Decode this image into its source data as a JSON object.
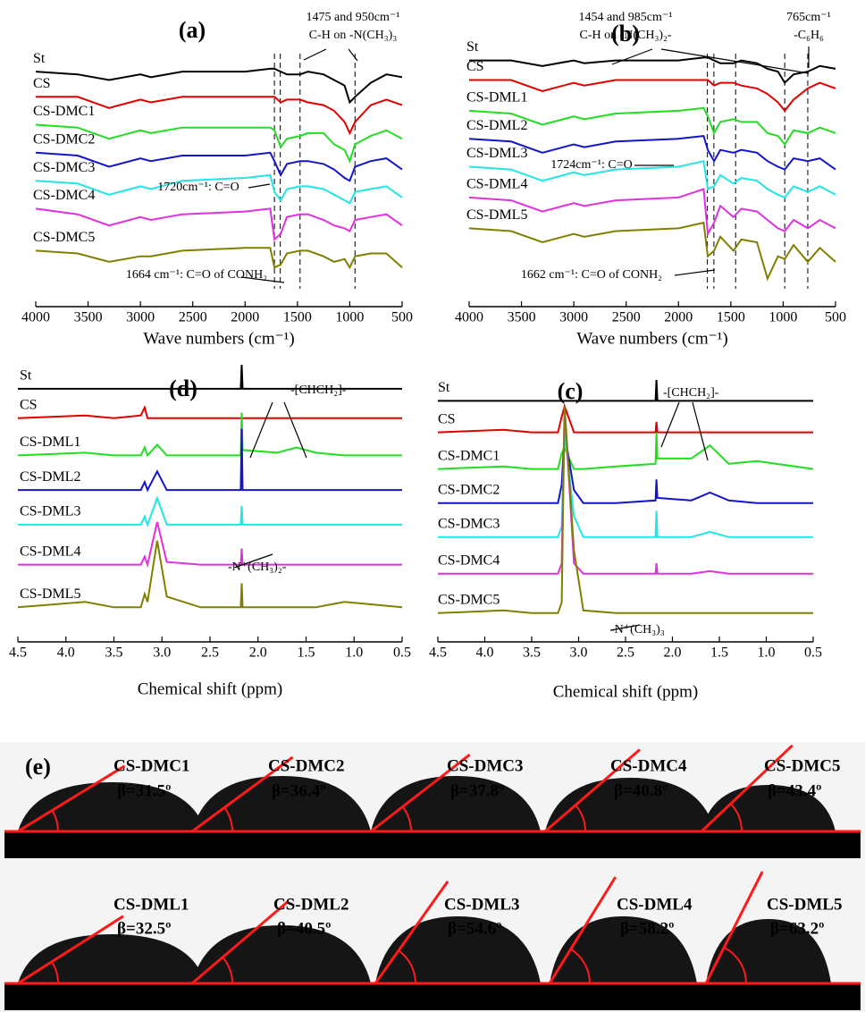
{
  "chart_data": [
    {
      "type": "line",
      "label": "(a)",
      "xlabel": "Wave numbers (cm⁻¹)",
      "xlim": [
        4000,
        500
      ],
      "xticks": [
        4000,
        3500,
        3000,
        2500,
        2000,
        1500,
        1000,
        500
      ],
      "ylim": [
        0,
        100
      ],
      "x": [
        4000,
        3600,
        3300,
        3000,
        2900,
        2600,
        2000,
        1760,
        1720,
        1660,
        1600,
        1475,
        1400,
        1250,
        1150,
        1050,
        1000,
        950,
        800,
        650,
        500
      ],
      "reference_lines": [
        1720,
        1664,
        1475,
        950
      ],
      "annotations": [
        "1475 and 950cm⁻¹",
        "C-H on -N(CH₃)₃",
        "1720cm⁻¹: C=O",
        "1664 cm⁻¹: C=O of CONH₂"
      ],
      "series": [
        {
          "name": "St",
          "color": "#000000",
          "values": [
            84,
            83,
            81,
            83,
            82,
            84,
            84,
            85,
            85,
            84,
            83,
            83,
            84,
            83,
            81,
            79,
            73,
            75,
            80,
            83,
            82
          ]
        },
        {
          "name": "CS",
          "color": "#e00000",
          "values": [
            75,
            75,
            71,
            74,
            73,
            75,
            75,
            75,
            75,
            73,
            74,
            74,
            73,
            72,
            70,
            66,
            62,
            66,
            72,
            74,
            72
          ]
        },
        {
          "name": "CS-DMC1",
          "color": "#22dd22",
          "values": [
            65,
            64,
            60,
            63,
            62,
            64,
            64,
            64,
            63,
            57,
            60,
            61,
            62,
            62,
            58,
            56,
            52,
            58,
            61,
            63,
            60
          ]
        },
        {
          "name": "CS-DMC2",
          "color": "#1515c8",
          "values": [
            55,
            54,
            50,
            53,
            52,
            54,
            54,
            55,
            52,
            47,
            51,
            52,
            52,
            51,
            49,
            46,
            45,
            50,
            52,
            53,
            49
          ]
        },
        {
          "name": "CS-DMC3",
          "color": "#22e5e5",
          "values": [
            45,
            44,
            40,
            43,
            42,
            45,
            46,
            47,
            41,
            38,
            42,
            43,
            43,
            42,
            40,
            38,
            37,
            41,
            42,
            43,
            39
          ]
        },
        {
          "name": "CS-DMC4",
          "color": "#e030e0",
          "values": [
            35,
            33,
            29,
            32,
            31,
            33,
            34,
            35,
            24,
            26,
            32,
            33,
            33,
            31,
            29,
            28,
            27,
            31,
            32,
            33,
            29
          ]
        },
        {
          "name": "CS-DMC5",
          "color": "#808000",
          "values": [
            20,
            19,
            16,
            18,
            18,
            20,
            21,
            21,
            14,
            15,
            19,
            20,
            20,
            18,
            16,
            17,
            14,
            18,
            19,
            19,
            14
          ]
        }
      ]
    },
    {
      "type": "line",
      "label": "(b)",
      "xlabel": "Wave numbers (cm⁻¹)",
      "xlim": [
        4000,
        500
      ],
      "xticks": [
        4000,
        3500,
        3000,
        2500,
        2000,
        1500,
        1000,
        500
      ],
      "ylim": [
        0,
        100
      ],
      "x": [
        4000,
        3600,
        3300,
        3000,
        2900,
        2600,
        2000,
        1760,
        1720,
        1660,
        1600,
        1475,
        1400,
        1250,
        1150,
        1050,
        985,
        900,
        765,
        650,
        500
      ],
      "reference_lines": [
        1724,
        1662,
        1454,
        985,
        765
      ],
      "annotations": [
        "1454 and 985cm⁻¹",
        "C-H on -N(CH₃)₂-",
        "765cm⁻¹",
        "-C₆H₆",
        "1724cm⁻¹: C=O",
        "1662 cm⁻¹: C=O of CONH₂"
      ],
      "series": [
        {
          "name": "St",
          "color": "#000000",
          "values": [
            88,
            88,
            86,
            88,
            87,
            88,
            88,
            89,
            89,
            88,
            87,
            87,
            88,
            87,
            85,
            84,
            80,
            83,
            84,
            86,
            85
          ]
        },
        {
          "name": "CS",
          "color": "#e00000",
          "values": [
            81,
            81,
            77,
            80,
            79,
            81,
            81,
            81,
            81,
            79,
            80,
            80,
            79,
            78,
            76,
            73,
            70,
            74,
            78,
            80,
            78
          ]
        },
        {
          "name": "CS-DML1",
          "color": "#22dd22",
          "values": [
            70,
            69,
            65,
            68,
            67,
            69,
            70,
            71,
            68,
            62,
            66,
            67,
            66,
            66,
            62,
            61,
            58,
            63,
            62,
            64,
            62
          ]
        },
        {
          "name": "CS-DML2",
          "color": "#1515c8",
          "values": [
            60,
            59,
            55,
            58,
            57,
            59,
            60,
            61,
            56,
            52,
            56,
            55,
            56,
            55,
            52,
            50,
            49,
            53,
            52,
            53,
            49
          ]
        },
        {
          "name": "CS-DML3",
          "color": "#22e5e5",
          "values": [
            50,
            49,
            45,
            48,
            47,
            49,
            50,
            52,
            42,
            43,
            47,
            44,
            46,
            45,
            42,
            40,
            39,
            43,
            41,
            43,
            40
          ]
        },
        {
          "name": "CS-DML4",
          "color": "#e030e0",
          "values": [
            39,
            38,
            34,
            37,
            36,
            38,
            39,
            42,
            26,
            30,
            36,
            32,
            35,
            34,
            31,
            28,
            27,
            31,
            28,
            31,
            28
          ]
        },
        {
          "name": "CS-DML5",
          "color": "#808000",
          "values": [
            28,
            27,
            23,
            26,
            25,
            27,
            28,
            30,
            18,
            20,
            25,
            20,
            24,
            23,
            10,
            18,
            17,
            22,
            16,
            21,
            16
          ]
        }
      ]
    },
    {
      "type": "line",
      "label": "(d)",
      "xlabel": "Chemical shift (ppm)",
      "xlim": [
        4.5,
        0.5
      ],
      "xticks": [
        4.5,
        {
          "value": 4,
          "label": "4.0"
        },
        3.5,
        {
          "value": 3,
          "label": "3.0"
        },
        2.5,
        {
          "value": 2,
          "label": "2.0"
        },
        1.5,
        {
          "value": 1,
          "label": "1.0"
        },
        0.5
      ],
      "ylim": [
        0,
        100
      ],
      "x": [
        4.5,
        3.8,
        3.5,
        3.22,
        3.18,
        3.15,
        3.05,
        2.95,
        2.6,
        2.18,
        2.17,
        2.16,
        1.8,
        1.6,
        1.4,
        1.1,
        0.5
      ],
      "annotations": [
        "-[CHCH₂]-",
        "-N⁺(CH₃)₂-"
      ],
      "series": [
        {
          "name": "St",
          "color": "#000000",
          "values": [
            95,
            95,
            95,
            95,
            95,
            95,
            95,
            95,
            95,
            95,
            104,
            95,
            95,
            95,
            95,
            95,
            95
          ]
        },
        {
          "name": "CS",
          "color": "#e00000",
          "values": [
            84,
            85,
            84,
            85,
            88,
            84,
            84,
            84,
            84,
            84,
            84,
            84,
            84,
            84,
            84,
            84,
            84
          ]
        },
        {
          "name": "CS-DML1",
          "color": "#22dd22",
          "values": [
            70,
            71,
            70,
            70,
            73,
            70,
            74,
            70,
            70,
            70,
            86,
            72,
            71,
            73,
            71,
            70,
            70
          ]
        },
        {
          "name": "CS-DML2",
          "color": "#1515c8",
          "values": [
            57,
            57,
            57,
            57,
            60,
            57,
            64,
            57,
            57,
            57,
            80,
            57,
            57,
            57,
            57,
            57,
            57
          ]
        },
        {
          "name": "CS-DML3",
          "color": "#22e5e5",
          "values": [
            44,
            44,
            44,
            44,
            47,
            44,
            54,
            44,
            44,
            44,
            51,
            44,
            44,
            44,
            44,
            44,
            44
          ]
        },
        {
          "name": "CS-DML4",
          "color": "#e030e0",
          "values": [
            29,
            29,
            29,
            29,
            32,
            29,
            45,
            30,
            29,
            29,
            35,
            29,
            29,
            29,
            29,
            29,
            29
          ]
        },
        {
          "name": "CS-DML5",
          "color": "#808000",
          "values": [
            13,
            15,
            13,
            13,
            18,
            15,
            38,
            17,
            13,
            13,
            22,
            13,
            13,
            13,
            13,
            15,
            13
          ]
        }
      ]
    },
    {
      "type": "line",
      "label": "(c)",
      "xlabel": "Chemical shift (ppm)",
      "xlim": [
        4.5,
        0.5
      ],
      "xticks": [
        4.5,
        {
          "value": 4,
          "label": "4.0"
        },
        3.5,
        {
          "value": 3,
          "label": "3.0"
        },
        2.5,
        {
          "value": 2,
          "label": "2.0"
        },
        1.5,
        {
          "value": 1,
          "label": "1.0"
        },
        0.5
      ],
      "ylim": [
        0,
        100
      ],
      "x": [
        4.5,
        3.8,
        3.5,
        3.22,
        3.18,
        3.15,
        3.05,
        2.95,
        2.6,
        2.18,
        2.17,
        2.16,
        1.8,
        1.6,
        1.4,
        1.1,
        0.5
      ],
      "annotations": [
        "-[CHCH₂]-",
        "-N⁺(CH₃)₃"
      ],
      "series": [
        {
          "name": "St",
          "color": "#000000",
          "values": [
            92,
            92,
            92,
            92,
            92,
            92,
            92,
            92,
            92,
            92,
            100,
            92,
            92,
            92,
            92,
            92,
            92
          ]
        },
        {
          "name": "CS",
          "color": "#e00000",
          "values": [
            80,
            81,
            80,
            80,
            86,
            90,
            80,
            80,
            80,
            80,
            84,
            80,
            80,
            80,
            80,
            80,
            80
          ]
        },
        {
          "name": "CS-DMC1",
          "color": "#22dd22",
          "values": [
            66,
            67,
            66,
            66,
            72,
            74,
            66,
            66,
            67,
            68,
            80,
            70,
            70,
            75,
            68,
            69,
            66
          ]
        },
        {
          "name": "CS-DMC2",
          "color": "#1515c8",
          "values": [
            53,
            53,
            53,
            53,
            60,
            80,
            58,
            53,
            53,
            54,
            62,
            55,
            54,
            57,
            54,
            53,
            53
          ]
        },
        {
          "name": "CS-DMC3",
          "color": "#22e5e5",
          "values": [
            40,
            40,
            40,
            40,
            44,
            80,
            48,
            40,
            40,
            40,
            50,
            40,
            40,
            42,
            40,
            40,
            40
          ]
        },
        {
          "name": "CS-DMC4",
          "color": "#e030e0",
          "values": [
            26,
            26,
            26,
            26,
            30,
            90,
            30,
            26,
            26,
            26,
            30,
            26,
            26,
            27,
            26,
            26,
            26
          ]
        },
        {
          "name": "CS-DMC5",
          "color": "#808000",
          "values": [
            11,
            12,
            11,
            11,
            15,
            90,
            35,
            12,
            11,
            11,
            11,
            11,
            11,
            11,
            11,
            11,
            11
          ]
        }
      ]
    }
  ],
  "photo": {
    "label": "(e)",
    "rows": [
      {
        "names": [
          "CS-DMC1",
          "CS-DMC2",
          "CS-DMC3",
          "CS-DMC4",
          "CS-DMC5"
        ],
        "values": [
          31.5,
          36.4,
          37.8,
          40.8,
          43.4
        ],
        "value_labels": [
          "β=31.5º",
          "β=36.4º",
          "β=37.8º",
          "β=40.8º",
          "β=43.4º"
        ]
      },
      {
        "names": [
          "CS-DML1",
          "CS-DML2",
          "CS-DML3",
          "CS-DML4",
          "CS-DML5"
        ],
        "values": [
          32.5,
          40.5,
          54.6,
          58.2,
          63.2
        ],
        "value_labels": [
          "β=32.5º",
          "β=40.5º",
          "β=54.6º",
          "β=58.2º",
          "β=63.2º"
        ]
      }
    ]
  }
}
